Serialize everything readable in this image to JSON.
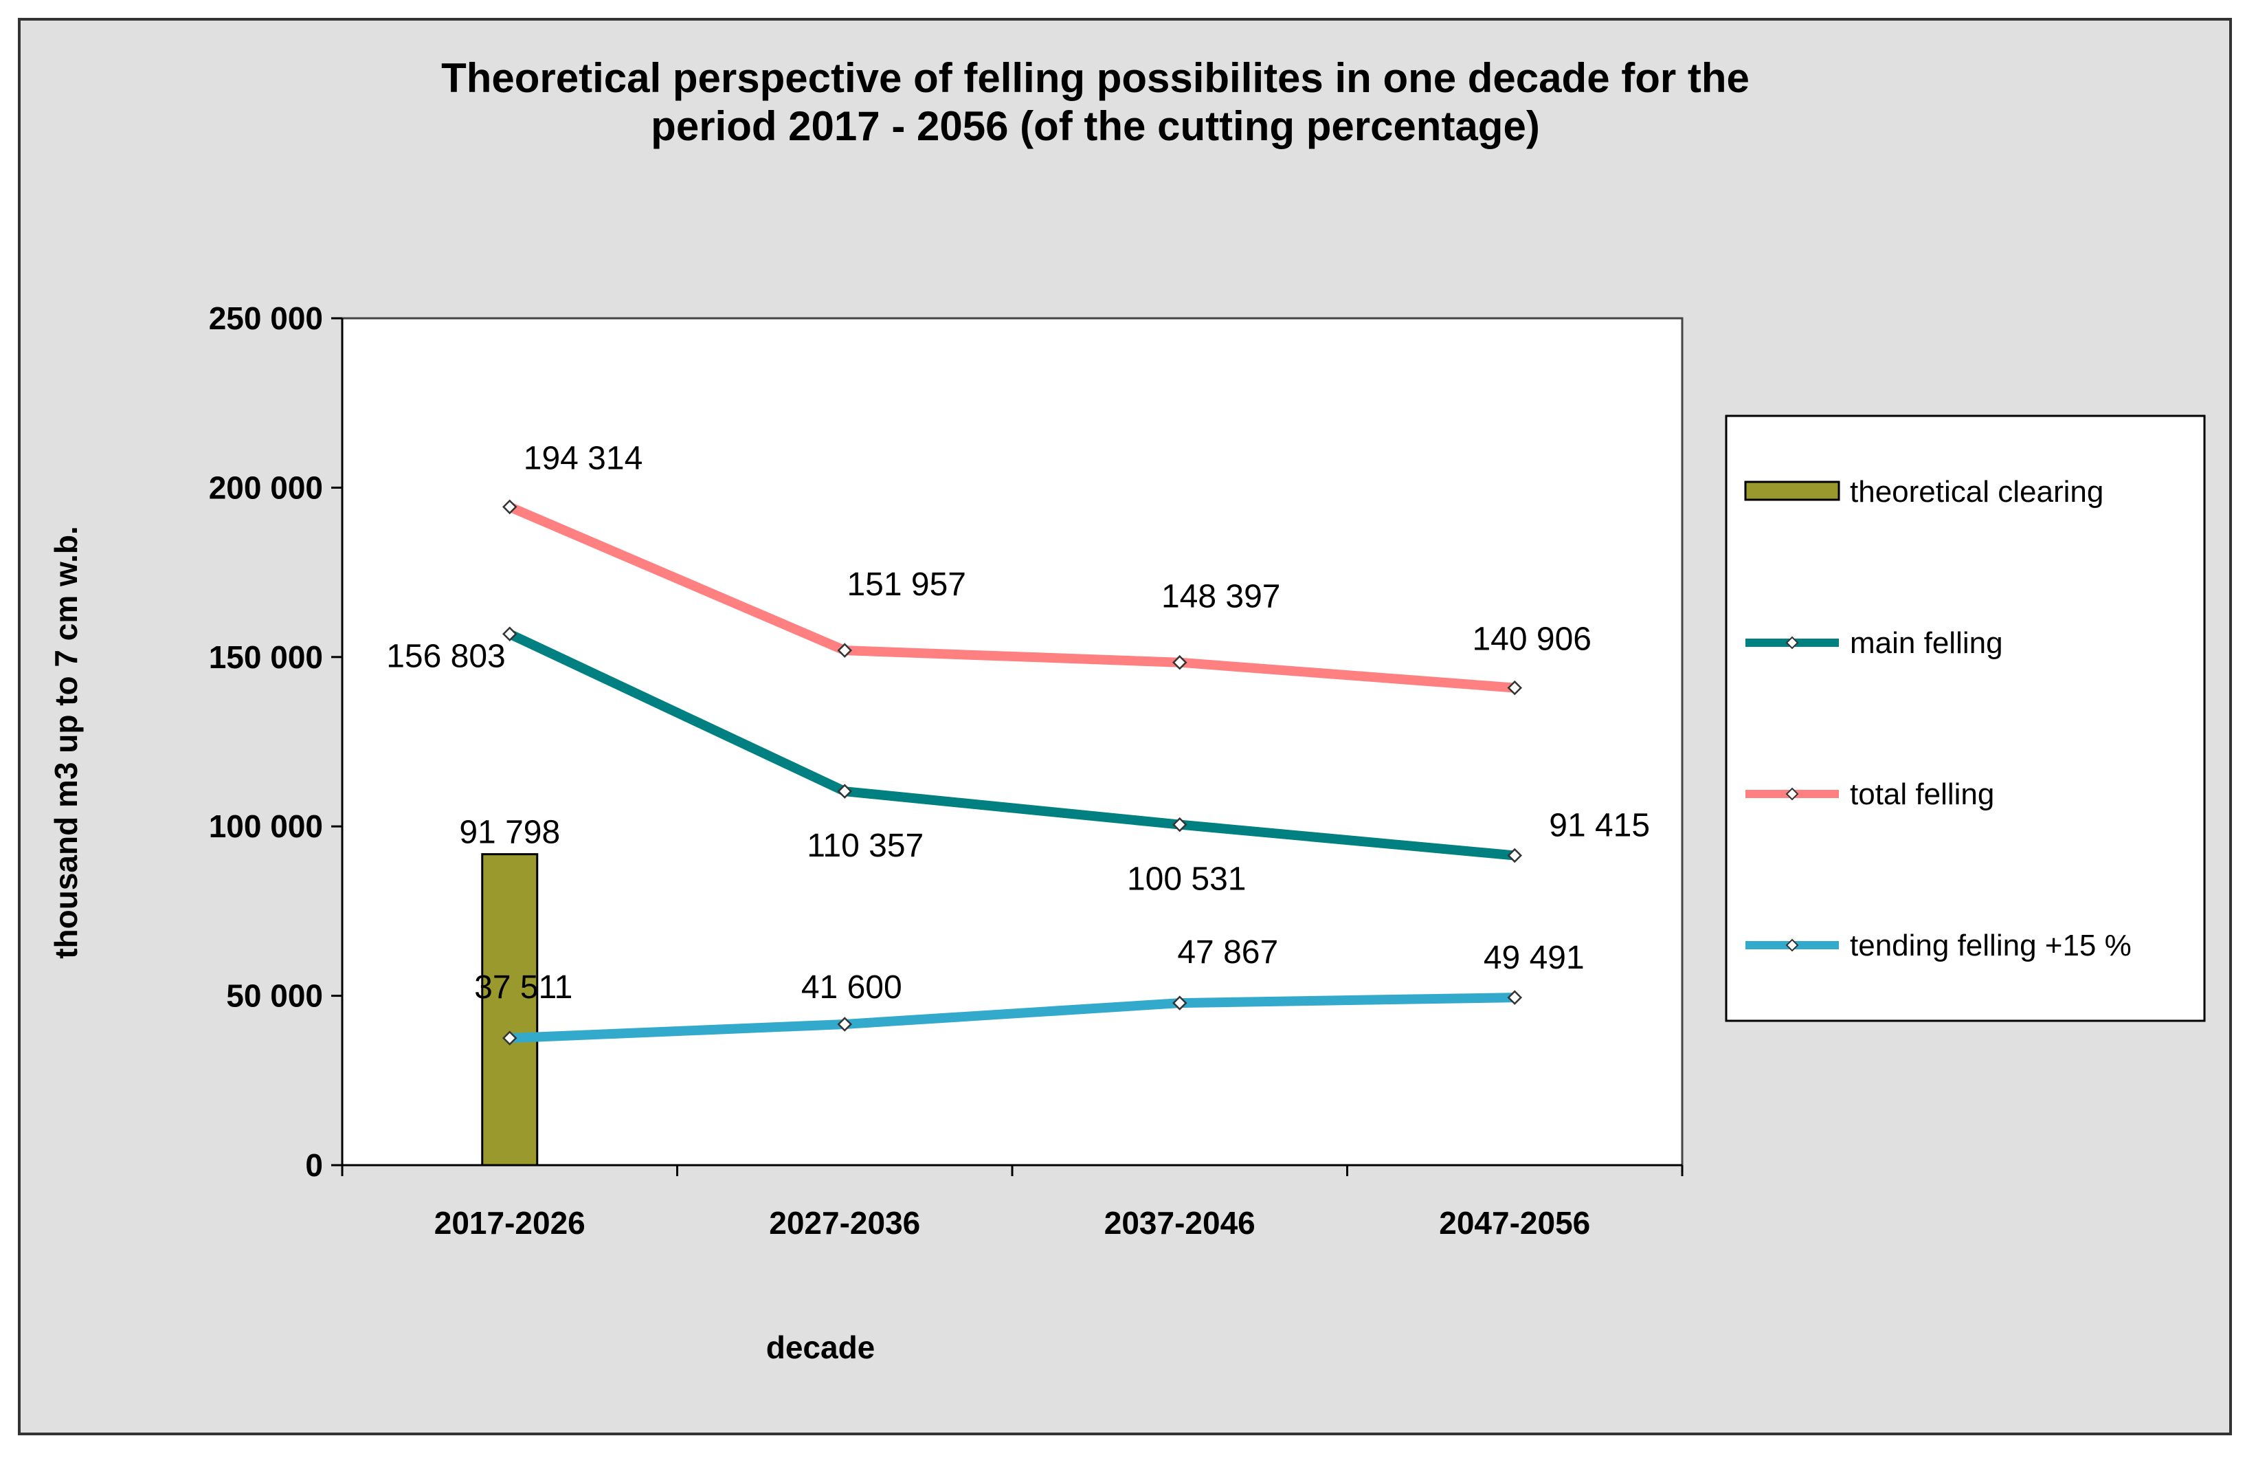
{
  "chart_data": {
    "type": "bar+line",
    "title_lines": [
      "Theoretical perspective  of felling possibilites  in one decade for the",
      "period 2017  - 2056 (of the cutting percentage)"
    ],
    "xlabel": "decade",
    "ylabel": "thousand m3 up to 7 cm w.b.",
    "categories": [
      "2017-2026",
      "2027-2036",
      "2037-2046",
      "2047-2056"
    ],
    "ylim": [
      0,
      250000
    ],
    "yticks": [
      0,
      50000,
      100000,
      150000,
      200000,
      250000
    ],
    "ytick_labels": [
      "0",
      "50 000",
      "100 000",
      "150 000",
      "200 000",
      "250 000"
    ],
    "legend_position": "right",
    "series": [
      {
        "name": "theoretical clearing",
        "kind": "bar",
        "color": "#99992e",
        "values": [
          91798,
          null,
          null,
          null
        ],
        "labels": [
          "91 798",
          null,
          null,
          null
        ]
      },
      {
        "name": "main felling",
        "kind": "line",
        "color": "#008080",
        "values": [
          156803,
          110357,
          100531,
          91415
        ],
        "labels": [
          "156 803",
          "110 357",
          "100 531",
          "91 415"
        ]
      },
      {
        "name": "total felling",
        "kind": "line",
        "color": "#ff8080",
        "values": [
          194314,
          151957,
          148397,
          140906
        ],
        "labels": [
          "194 314",
          "151 957",
          "148 397",
          "140 906"
        ]
      },
      {
        "name": "tending felling +15 %",
        "kind": "line",
        "color": "#33aacc",
        "values": [
          37511,
          41600,
          47867,
          49491
        ],
        "labels": [
          "37 511",
          "41 600",
          "47 867",
          "49 491"
        ]
      }
    ]
  }
}
